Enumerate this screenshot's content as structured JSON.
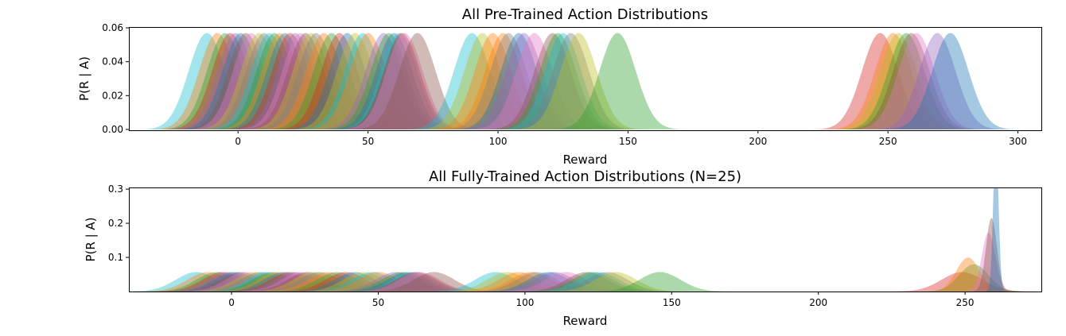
{
  "chart_data": [
    {
      "type": "area",
      "title": "All Pre-Trained Action Distributions",
      "xlabel": "Reward",
      "ylabel": "P(R | A)",
      "xlim": [
        -42,
        309
      ],
      "ylim": [
        -0.0005,
        0.0605
      ],
      "x_ticks": [
        0,
        50,
        100,
        150,
        200,
        250,
        300
      ],
      "y_ticks": [
        0.0,
        0.02,
        0.04,
        0.06
      ],
      "y_tick_labels": [
        "0.00",
        "0.02",
        "0.04",
        "0.06"
      ],
      "grid": false,
      "alpha": 0.4,
      "series": [
        {
          "color": "#17becf",
          "mu": -12,
          "sigma": 7
        },
        {
          "color": "#ff7f0e",
          "mu": -8,
          "sigma": 7
        },
        {
          "color": "#2ca02c",
          "mu": -5,
          "sigma": 7
        },
        {
          "color": "#d62728",
          "mu": -3,
          "sigma": 7
        },
        {
          "color": "#9467bd",
          "mu": -1,
          "sigma": 7
        },
        {
          "color": "#1f77b4",
          "mu": 1,
          "sigma": 7
        },
        {
          "color": "#8c564b",
          "mu": 3,
          "sigma": 7
        },
        {
          "color": "#e377c2",
          "mu": 5,
          "sigma": 7
        },
        {
          "color": "#bcbd22",
          "mu": 8,
          "sigma": 7
        },
        {
          "color": "#7f7f7f",
          "mu": 10,
          "sigma": 7
        },
        {
          "color": "#17becf",
          "mu": 12,
          "sigma": 7
        },
        {
          "color": "#2ca02c",
          "mu": 14,
          "sigma": 7
        },
        {
          "color": "#ff7f0e",
          "mu": 16,
          "sigma": 7
        },
        {
          "color": "#1f77b4",
          "mu": 18,
          "sigma": 7
        },
        {
          "color": "#d62728",
          "mu": 20,
          "sigma": 7
        },
        {
          "color": "#9467bd",
          "mu": 22,
          "sigma": 7
        },
        {
          "color": "#e377c2",
          "mu": 24,
          "sigma": 7
        },
        {
          "color": "#8c564b",
          "mu": 26,
          "sigma": 7
        },
        {
          "color": "#bcbd22",
          "mu": 28,
          "sigma": 7
        },
        {
          "color": "#7f7f7f",
          "mu": 30,
          "sigma": 7
        },
        {
          "color": "#ff7f0e",
          "mu": 33,
          "sigma": 7
        },
        {
          "color": "#2ca02c",
          "mu": 36,
          "sigma": 7
        },
        {
          "color": "#d62728",
          "mu": 39,
          "sigma": 7
        },
        {
          "color": "#1f77b4",
          "mu": 42,
          "sigma": 7
        },
        {
          "color": "#bcbd22",
          "mu": 45,
          "sigma": 7
        },
        {
          "color": "#17becf",
          "mu": 48,
          "sigma": 7
        },
        {
          "color": "#ff7f0e",
          "mu": 50,
          "sigma": 7
        },
        {
          "color": "#9467bd",
          "mu": 56,
          "sigma": 7
        },
        {
          "color": "#2ca02c",
          "mu": 58,
          "sigma": 7
        },
        {
          "color": "#1f77b4",
          "mu": 60,
          "sigma": 7
        },
        {
          "color": "#17becf",
          "mu": 62,
          "sigma": 7
        },
        {
          "color": "#d62728",
          "mu": 63,
          "sigma": 7
        },
        {
          "color": "#e377c2",
          "mu": 64,
          "sigma": 7
        },
        {
          "color": "#8c564b",
          "mu": 69,
          "sigma": 7
        },
        {
          "color": "#17becf",
          "mu": 90,
          "sigma": 7
        },
        {
          "color": "#bcbd22",
          "mu": 94,
          "sigma": 7
        },
        {
          "color": "#ff7f0e",
          "mu": 98,
          "sigma": 7
        },
        {
          "color": "#ff7f0e",
          "mu": 102,
          "sigma": 7
        },
        {
          "color": "#7f7f7f",
          "mu": 104,
          "sigma": 7
        },
        {
          "color": "#1f77b4",
          "mu": 108,
          "sigma": 7
        },
        {
          "color": "#9467bd",
          "mu": 110,
          "sigma": 7
        },
        {
          "color": "#e377c2",
          "mu": 114,
          "sigma": 7
        },
        {
          "color": "#8c564b",
          "mu": 121,
          "sigma": 7
        },
        {
          "color": "#2ca02c",
          "mu": 123,
          "sigma": 7
        },
        {
          "color": "#17becf",
          "mu": 125,
          "sigma": 7
        },
        {
          "color": "#7f7f7f",
          "mu": 128,
          "sigma": 7
        },
        {
          "color": "#bcbd22",
          "mu": 131,
          "sigma": 7
        },
        {
          "color": "#2ca02c",
          "mu": 146,
          "sigma": 7
        },
        {
          "color": "#d62728",
          "mu": 247,
          "sigma": 7
        },
        {
          "color": "#ff7f0e",
          "mu": 252,
          "sigma": 7
        },
        {
          "color": "#bcbd22",
          "mu": 254,
          "sigma": 7
        },
        {
          "color": "#2ca02c",
          "mu": 257,
          "sigma": 7
        },
        {
          "color": "#8c564b",
          "mu": 259,
          "sigma": 7
        },
        {
          "color": "#e377c2",
          "mu": 261,
          "sigma": 7
        },
        {
          "color": "#9467bd",
          "mu": 269,
          "sigma": 7
        },
        {
          "color": "#1f77b4",
          "mu": 274,
          "sigma": 7
        }
      ]
    },
    {
      "type": "area",
      "title": "All Fully-Trained Action Distributions (N=25)",
      "xlabel": "Reward",
      "ylabel": "P(R | A)",
      "xlim": [
        -35,
        276
      ],
      "ylim": [
        0,
        0.305
      ],
      "x_ticks": [
        0,
        50,
        100,
        150,
        200,
        250
      ],
      "y_ticks": [
        0.1,
        0.2,
        0.3
      ],
      "y_tick_labels": [
        "0.1",
        "0.2",
        "0.3"
      ],
      "grid": false,
      "alpha": 0.4,
      "series": [
        {
          "color": "#17becf",
          "mu": -12,
          "sigma": 7
        },
        {
          "color": "#ff7f0e",
          "mu": -8,
          "sigma": 7
        },
        {
          "color": "#2ca02c",
          "mu": -5,
          "sigma": 7
        },
        {
          "color": "#d62728",
          "mu": -3,
          "sigma": 7
        },
        {
          "color": "#9467bd",
          "mu": -1,
          "sigma": 7
        },
        {
          "color": "#1f77b4",
          "mu": 1,
          "sigma": 7
        },
        {
          "color": "#8c564b",
          "mu": 3,
          "sigma": 7
        },
        {
          "color": "#e377c2",
          "mu": 5,
          "sigma": 7
        },
        {
          "color": "#bcbd22",
          "mu": 8,
          "sigma": 7
        },
        {
          "color": "#7f7f7f",
          "mu": 10,
          "sigma": 7
        },
        {
          "color": "#17becf",
          "mu": 12,
          "sigma": 7
        },
        {
          "color": "#2ca02c",
          "mu": 14,
          "sigma": 7
        },
        {
          "color": "#ff7f0e",
          "mu": 16,
          "sigma": 7
        },
        {
          "color": "#1f77b4",
          "mu": 18,
          "sigma": 7
        },
        {
          "color": "#d62728",
          "mu": 20,
          "sigma": 7
        },
        {
          "color": "#9467bd",
          "mu": 22,
          "sigma": 7
        },
        {
          "color": "#e377c2",
          "mu": 24,
          "sigma": 7
        },
        {
          "color": "#8c564b",
          "mu": 26,
          "sigma": 7
        },
        {
          "color": "#bcbd22",
          "mu": 28,
          "sigma": 7
        },
        {
          "color": "#7f7f7f",
          "mu": 30,
          "sigma": 7
        },
        {
          "color": "#ff7f0e",
          "mu": 33,
          "sigma": 7
        },
        {
          "color": "#2ca02c",
          "mu": 36,
          "sigma": 7
        },
        {
          "color": "#d62728",
          "mu": 39,
          "sigma": 7
        },
        {
          "color": "#1f77b4",
          "mu": 42,
          "sigma": 7
        },
        {
          "color": "#bcbd22",
          "mu": 45,
          "sigma": 7
        },
        {
          "color": "#17becf",
          "mu": 48,
          "sigma": 7
        },
        {
          "color": "#ff7f0e",
          "mu": 50,
          "sigma": 7
        },
        {
          "color": "#9467bd",
          "mu": 56,
          "sigma": 7
        },
        {
          "color": "#2ca02c",
          "mu": 58,
          "sigma": 7
        },
        {
          "color": "#1f77b4",
          "mu": 60,
          "sigma": 7
        },
        {
          "color": "#17becf",
          "mu": 62,
          "sigma": 7
        },
        {
          "color": "#d62728",
          "mu": 63,
          "sigma": 7
        },
        {
          "color": "#e377c2",
          "mu": 64,
          "sigma": 7
        },
        {
          "color": "#8c564b",
          "mu": 69,
          "sigma": 7
        },
        {
          "color": "#17becf",
          "mu": 90,
          "sigma": 7
        },
        {
          "color": "#bcbd22",
          "mu": 94,
          "sigma": 7
        },
        {
          "color": "#ff7f0e",
          "mu": 98,
          "sigma": 7
        },
        {
          "color": "#ff7f0e",
          "mu": 102,
          "sigma": 7
        },
        {
          "color": "#7f7f7f",
          "mu": 104,
          "sigma": 7
        },
        {
          "color": "#1f77b4",
          "mu": 108,
          "sigma": 7
        },
        {
          "color": "#9467bd",
          "mu": 110,
          "sigma": 7
        },
        {
          "color": "#e377c2",
          "mu": 114,
          "sigma": 7
        },
        {
          "color": "#8c564b",
          "mu": 121,
          "sigma": 7
        },
        {
          "color": "#2ca02c",
          "mu": 123,
          "sigma": 7
        },
        {
          "color": "#17becf",
          "mu": 125,
          "sigma": 7
        },
        {
          "color": "#7f7f7f",
          "mu": 128,
          "sigma": 7
        },
        {
          "color": "#bcbd22",
          "mu": 131,
          "sigma": 7
        },
        {
          "color": "#2ca02c",
          "mu": 146,
          "sigma": 7
        },
        {
          "color": "#d62728",
          "mu": 249,
          "sigma": 7
        },
        {
          "color": "#2ca02c",
          "mu": 253,
          "sigma": 5
        },
        {
          "color": "#ff7f0e",
          "mu": 251,
          "sigma": 4
        },
        {
          "color": "#e377c2",
          "mu": 258,
          "sigma": 2.3
        },
        {
          "color": "#8c564b",
          "mu": 259,
          "sigma": 1.85
        },
        {
          "color": "#1f77b4",
          "mu": 260.5,
          "sigma": 0.9
        }
      ]
    }
  ]
}
